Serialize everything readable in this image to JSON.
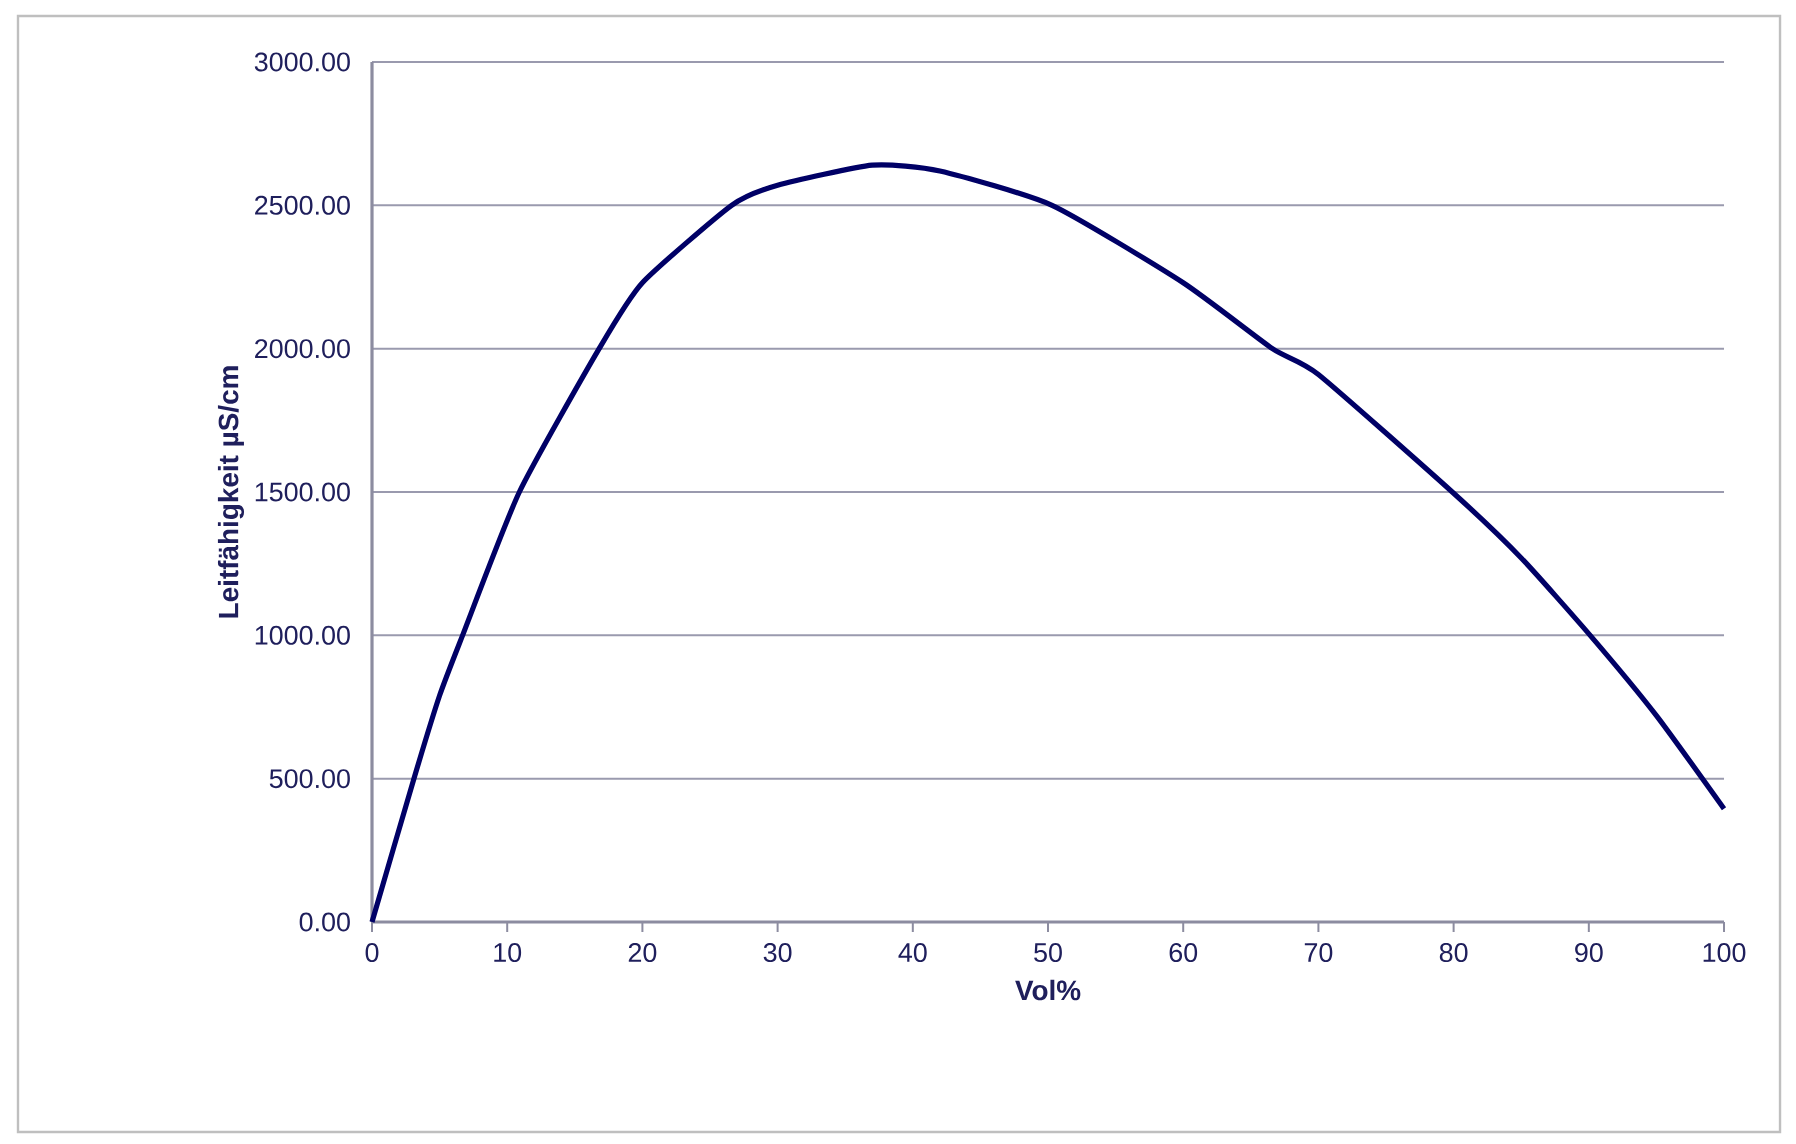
{
  "chart_data": {
    "type": "line",
    "xlabel": "Vol%",
    "ylabel": "Leitfähigkeit µS/cm",
    "x": [
      0,
      3.1,
      5,
      6.7,
      10.9,
      16.8,
      20,
      26.6,
      30,
      37,
      42,
      50.3,
      60,
      66.6,
      70,
      79.9,
      85,
      90.1,
      95,
      100
    ],
    "series": [
      {
        "color": "#000066",
        "values": [
          0,
          500,
          790,
          1000,
          1500,
          2000,
          2230,
          2500,
          2570,
          2640,
          2620,
          2500,
          2230,
          2000,
          1910,
          1500,
          1270,
          1000,
          720,
          395
        ]
      }
    ],
    "xlim": [
      0,
      100
    ],
    "xticks": [
      0,
      10,
      20,
      30,
      40,
      50,
      60,
      70,
      80,
      90,
      100
    ],
    "ylim": [
      0,
      3000
    ],
    "yticks": [
      {
        "value": 0,
        "label": "0.00"
      },
      {
        "value": 500,
        "label": "500.00"
      },
      {
        "value": 1000,
        "label": "1000.00"
      },
      {
        "value": 1500,
        "label": "1500.00"
      },
      {
        "value": 2000,
        "label": "2000.00"
      },
      {
        "value": 2500,
        "label": "2500.00"
      },
      {
        "value": 3000,
        "label": "3000.00"
      }
    ],
    "grid": "y",
    "marker": "none",
    "line_style": "solid"
  }
}
